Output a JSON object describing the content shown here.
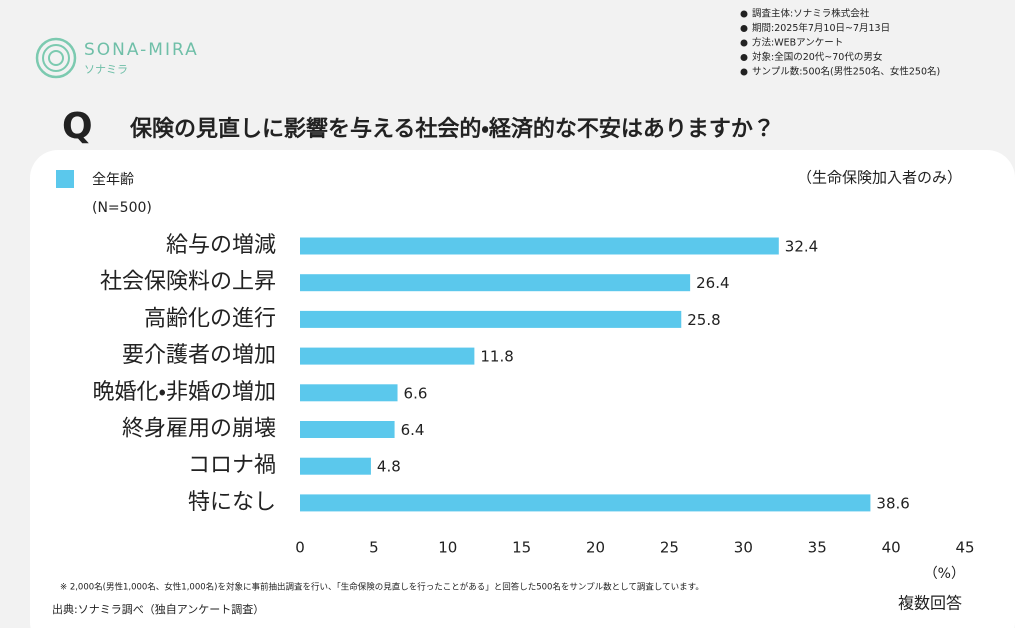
{
  "logo": {
    "name": "SONA-MIRA",
    "kana": "ソナミラ"
  },
  "survey_info": [
    "調査主体:ソナミラ株式会社",
    "期間:2025年7月10日~7月13日",
    "方法:WEBアンケート",
    "対象:全国の20代~70代の男女",
    "サンプル数:500名(男性250名、女性250名)"
  ],
  "chart_data": {
    "type": "bar",
    "orientation": "horizontal",
    "question_mark": "Q",
    "title": "保険の見直しに影響を与える社会的・経済的な不安はありますか？",
    "sample_size": "(N=500)",
    "note": "（生命保険加入者のみ）",
    "categories": [
      "給与の増減",
      "社会保険料の上昇",
      "高齢化の進行",
      "要介護者の増加",
      "晩婚化・非婚の増加",
      "終身雇用の崩壊",
      "コロナ禍",
      "特になし"
    ],
    "series": [
      {
        "name": "全年齢",
        "color": "#5bc8ec",
        "values": [
          32.4,
          26.4,
          25.8,
          11.8,
          6.6,
          6.4,
          4.8,
          38.6
        ]
      }
    ],
    "xlim": [
      0,
      45
    ],
    "xticks": [
      0,
      5,
      10,
      15,
      20,
      25,
      30,
      35,
      40,
      45
    ],
    "x_unit": "（%）",
    "grid": false,
    "legend": "top-left",
    "answer_type": "複数回答",
    "footnote": "※ 2,000名(男性1,000名、女性1,000名)を対象に事前抽出調査を行い、「生命保険の見直しを行ったことがある」と回答した500名をサンプル数として調査しています。",
    "source": "出典:ソナミラ調べ（独自アンケート調査）"
  }
}
